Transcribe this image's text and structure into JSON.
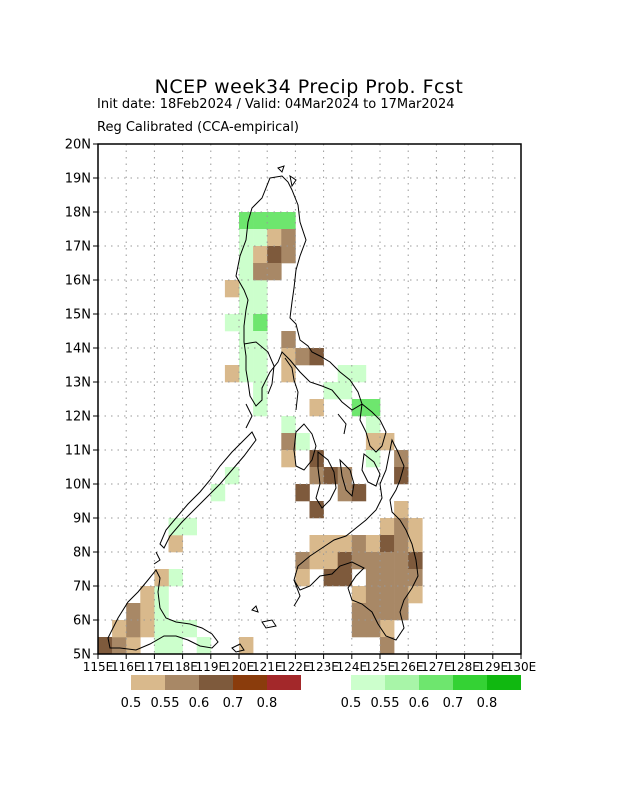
{
  "chart_data": {
    "type": "heatmap",
    "title": "NCEP week34 Precip Prob. Fcst",
    "subtitle_lines": [
      "Init date: 18Feb2024 / Valid: 04Mar2024 to 17Mar2024",
      "Reg Calibrated (CCA-empirical)"
    ],
    "xlim": [
      115,
      130
    ],
    "ylim": [
      5,
      20
    ],
    "x_tick_labels": [
      "115E",
      "116E",
      "117E",
      "118E",
      "119E",
      "120E",
      "121E",
      "122E",
      "123E",
      "124E",
      "125E",
      "126E",
      "127E",
      "128E",
      "129E",
      "130E"
    ],
    "y_tick_labels": [
      "5N",
      "6N",
      "7N",
      "8N",
      "9N",
      "10N",
      "11N",
      "12N",
      "13N",
      "14N",
      "15N",
      "16N",
      "17N",
      "18N",
      "19N",
      "20N"
    ],
    "grid": "dotted",
    "cell_size_deg": 0.5,
    "below_legend": {
      "colors": [
        "#d9b98c",
        "#a88866",
        "#7e5a3c",
        "#8a3c0c",
        "#a3282a"
      ],
      "labels": [
        "0.5",
        "0.55",
        "0.6",
        "0.7",
        "0.8"
      ]
    },
    "above_legend": {
      "colors": [
        "#ccffcc",
        "#a8f5a8",
        "#6ee66e",
        "#34d234",
        "#10b810"
      ],
      "labels": [
        "0.5",
        "0.55",
        "0.6",
        "0.7",
        "0.8"
      ]
    },
    "cells": [
      [
        "A2",
        120.0,
        17.5
      ],
      [
        "A2",
        120.5,
        17.5
      ],
      [
        "A2",
        121.0,
        17.5
      ],
      [
        "A2",
        121.5,
        17.5
      ],
      [
        "A1",
        120.0,
        17.0
      ],
      [
        "A1",
        120.5,
        17.0
      ],
      [
        "A1",
        120.0,
        16.5
      ],
      [
        "A1",
        120.5,
        16.5
      ],
      [
        "A1",
        120.0,
        16.0
      ],
      [
        "A1",
        120.0,
        15.5
      ],
      [
        "A1",
        120.5,
        15.5
      ],
      [
        "A1",
        120.0,
        15.0
      ],
      [
        "A1",
        120.5,
        15.0
      ],
      [
        "A1",
        119.5,
        14.5
      ],
      [
        "A1",
        120.0,
        14.5
      ],
      [
        "A1",
        120.5,
        14.5
      ],
      [
        "A2",
        120.5,
        14.5
      ],
      [
        "A1",
        120.0,
        14.0
      ],
      [
        "A1",
        120.5,
        14.0
      ],
      [
        "A1",
        120.0,
        13.5
      ],
      [
        "A1",
        120.5,
        13.5
      ],
      [
        "A1",
        120.0,
        13.0
      ],
      [
        "A1",
        120.5,
        13.0
      ],
      [
        "A1",
        120.5,
        12.5
      ],
      [
        "A1",
        120.5,
        12.0
      ],
      [
        "B1",
        121.0,
        17.0
      ],
      [
        "B2",
        121.5,
        17.0
      ],
      [
        "B1",
        120.5,
        16.5
      ],
      [
        "B3",
        121.0,
        16.5
      ],
      [
        "B2",
        121.5,
        16.5
      ],
      [
        "B2",
        120.5,
        16.0
      ],
      [
        "B2",
        121.0,
        16.0
      ],
      [
        "B1",
        119.5,
        15.5
      ],
      [
        "B2",
        121.5,
        14.0
      ],
      [
        "B1",
        121.5,
        13.5
      ],
      [
        "B2",
        122.0,
        13.5
      ],
      [
        "B3",
        122.5,
        13.5
      ],
      [
        "B1",
        121.5,
        13.0
      ],
      [
        "B1",
        119.5,
        13.0
      ],
      [
        "A1",
        123.5,
        13.0
      ],
      [
        "A1",
        124.0,
        13.0
      ],
      [
        "A1",
        123.0,
        12.5
      ],
      [
        "A1",
        123.5,
        12.5
      ],
      [
        "B1",
        122.5,
        12.0
      ],
      [
        "A2",
        124.0,
        12.0
      ],
      [
        "A2",
        124.5,
        12.0
      ],
      [
        "A1",
        124.5,
        11.5
      ],
      [
        "A1",
        121.5,
        11.5
      ],
      [
        "A1",
        122.0,
        11.0
      ],
      [
        "B2",
        121.5,
        11.0
      ],
      [
        "B1",
        121.5,
        10.5
      ],
      [
        "B3",
        122.5,
        10.5
      ],
      [
        "B2",
        122.5,
        10.0
      ],
      [
        "B3",
        123.0,
        10.0
      ],
      [
        "B2",
        123.5,
        10.0
      ],
      [
        "B3",
        122.0,
        9.5
      ],
      [
        "B2",
        123.5,
        9.5
      ],
      [
        "B3",
        124.0,
        9.5
      ],
      [
        "B3",
        122.5,
        9.0
      ],
      [
        "B1",
        124.5,
        11.0
      ],
      [
        "B1",
        125.0,
        11.0
      ],
      [
        "B2",
        125.5,
        10.5
      ],
      [
        "B3",
        125.5,
        10.0
      ],
      [
        "A1",
        124.5,
        10.5
      ],
      [
        "B1",
        125.5,
        9.0
      ],
      [
        "B1",
        125.0,
        8.5
      ],
      [
        "B2",
        125.5,
        8.5
      ],
      [
        "B1",
        126.0,
        8.5
      ],
      [
        "B1",
        122.5,
        8.0
      ],
      [
        "B1",
        123.0,
        8.0
      ],
      [
        "B1",
        123.5,
        8.0
      ],
      [
        "B2",
        124.0,
        8.0
      ],
      [
        "B1",
        124.5,
        8.0
      ],
      [
        "B3",
        125.0,
        8.0
      ],
      [
        "B2",
        125.5,
        8.0
      ],
      [
        "B1",
        126.0,
        8.0
      ],
      [
        "B2",
        122.0,
        7.5
      ],
      [
        "B1",
        122.5,
        7.5
      ],
      [
        "B1",
        123.0,
        7.5
      ],
      [
        "B3",
        123.5,
        7.5
      ],
      [
        "B2",
        124.0,
        7.5
      ],
      [
        "B2",
        124.5,
        7.5
      ],
      [
        "B2",
        125.0,
        7.5
      ],
      [
        "B2",
        125.5,
        7.5
      ],
      [
        "B3",
        126.0,
        7.5
      ],
      [
        "B1",
        122.0,
        7.0
      ],
      [
        "B3",
        123.0,
        7.0
      ],
      [
        "B3",
        123.5,
        7.0
      ],
      [
        "B2",
        124.5,
        7.0
      ],
      [
        "B2",
        125.0,
        7.0
      ],
      [
        "B2",
        125.5,
        7.0
      ],
      [
        "B2",
        126.0,
        7.0
      ],
      [
        "B1",
        124.0,
        6.5
      ],
      [
        "B2",
        124.5,
        6.5
      ],
      [
        "B2",
        125.0,
        6.5
      ],
      [
        "B2",
        125.5,
        6.5
      ],
      [
        "B1",
        126.0,
        6.5
      ],
      [
        "B2",
        124.0,
        6.0
      ],
      [
        "B2",
        124.5,
        6.0
      ],
      [
        "B2",
        125.0,
        6.0
      ],
      [
        "B2",
        125.5,
        6.0
      ],
      [
        "B2",
        124.0,
        5.5
      ],
      [
        "B1",
        125.0,
        5.5
      ],
      [
        "B2",
        124.5,
        5.5
      ],
      [
        "B2",
        125.0,
        5.0
      ],
      [
        "B3",
        115.0,
        5.0
      ],
      [
        "B2",
        115.5,
        5.0
      ],
      [
        "B1",
        116.0,
        5.0
      ],
      [
        "B1",
        115.5,
        5.5
      ],
      [
        "B2",
        116.0,
        5.5
      ],
      [
        "B1",
        116.5,
        5.5
      ],
      [
        "B2",
        116.0,
        6.0
      ],
      [
        "B1",
        116.5,
        6.0
      ],
      [
        "B1",
        116.5,
        6.5
      ],
      [
        "A1",
        117.0,
        6.5
      ],
      [
        "A1",
        117.0,
        6.0
      ],
      [
        "A1",
        117.0,
        5.5
      ],
      [
        "A1",
        117.5,
        5.5
      ],
      [
        "A1",
        118.0,
        5.5
      ],
      [
        "A1",
        118.5,
        5.0
      ],
      [
        "A1",
        117.0,
        5.0
      ],
      [
        "A1",
        117.5,
        5.0
      ],
      [
        "A1",
        117.0,
        7.0
      ],
      [
        "A1",
        117.5,
        7.0
      ],
      [
        "B1",
        117.0,
        7.0
      ],
      [
        "B1",
        117.5,
        8.0
      ],
      [
        "A1",
        117.5,
        8.5
      ],
      [
        "A1",
        118.0,
        8.5
      ],
      [
        "A1",
        119.0,
        9.5
      ],
      [
        "A1",
        119.5,
        10.0
      ],
      [
        "B1",
        120.0,
        5.0
      ]
    ]
  }
}
